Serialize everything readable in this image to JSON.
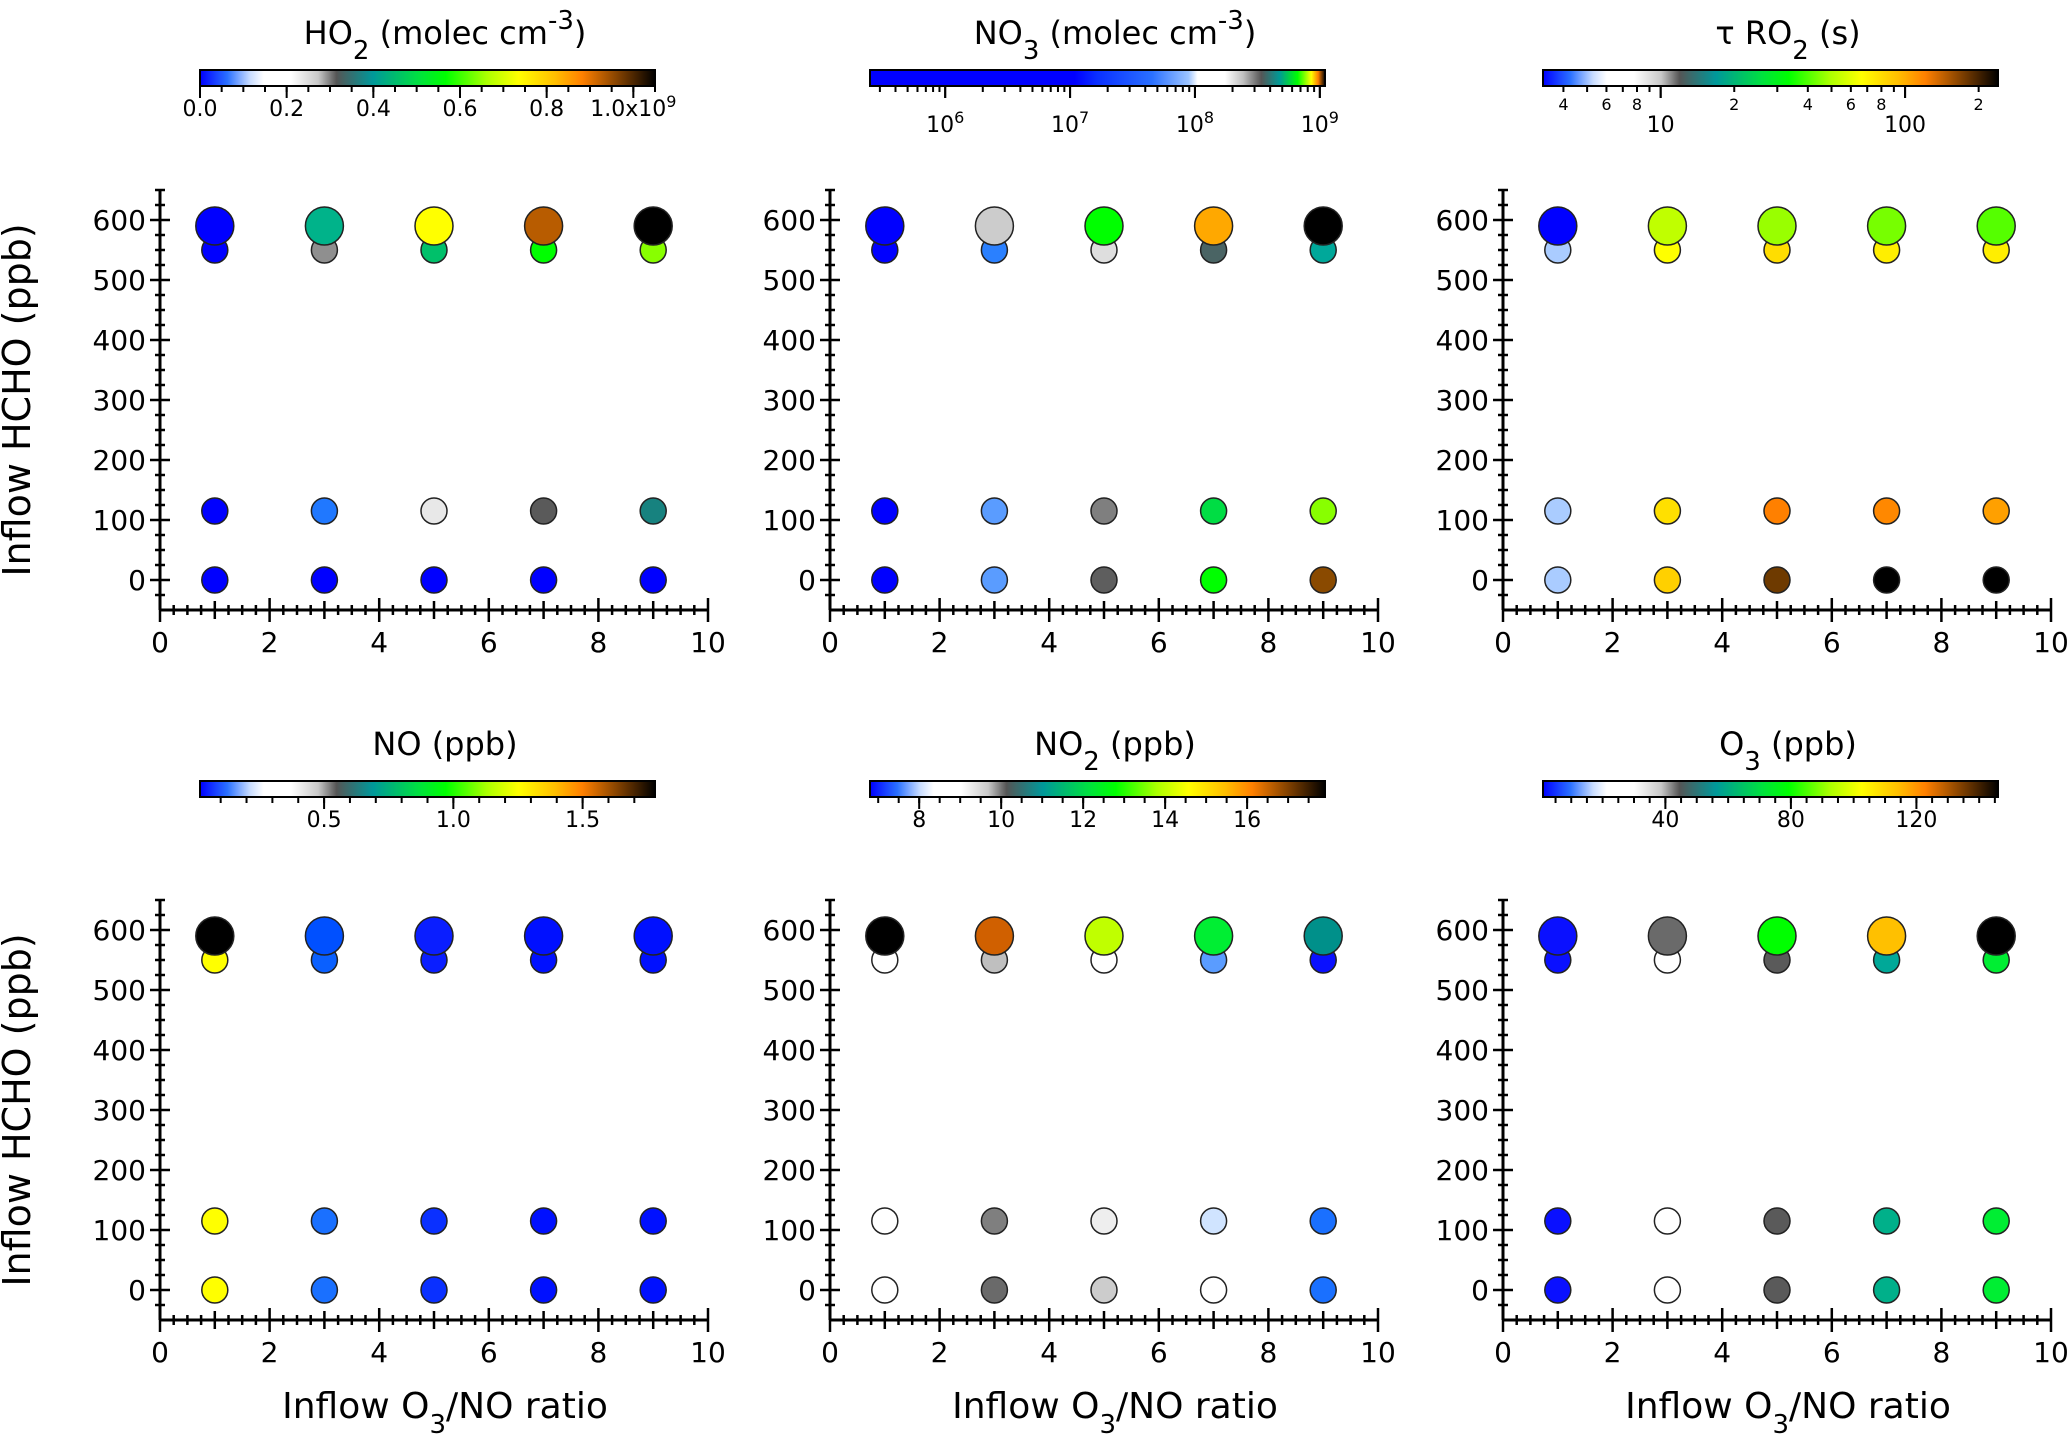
{
  "figure": {
    "shared_ylabel": "Inflow HCHO (ppb)",
    "shared_xlabel_parts": [
      "Inflow O",
      "3",
      "/NO ratio"
    ]
  },
  "chart_data": [
    {
      "id": "ho2",
      "type": "scatter",
      "title_parts": [
        {
          "t": "HO"
        },
        {
          "t": "2",
          "sub": true
        },
        {
          "t": "  (molec cm"
        },
        {
          "t": "-3",
          "sup": true
        },
        {
          "t": ")"
        }
      ],
      "xlabel": "Inflow O3/NO ratio",
      "ylabel": "Inflow HCHO (ppb)",
      "xlim": [
        0,
        10
      ],
      "ylim": [
        -50,
        650
      ],
      "xticks": [
        0,
        2,
        4,
        6,
        8,
        10
      ],
      "yticks": [
        0,
        100,
        200,
        300,
        400,
        500,
        600
      ],
      "x_values": [
        1,
        3,
        5,
        7,
        9
      ],
      "colorbar": {
        "scale": "linear",
        "range": [
          0,
          1050000000.0
        ],
        "tick_labels": [
          {
            "v": 0,
            "label": "0.0"
          },
          {
            "v": 200000000.0,
            "label": "0.2"
          },
          {
            "v": 400000000.0,
            "label": "0.4"
          },
          {
            "v": 600000000.0,
            "label": "0.6"
          },
          {
            "v": 800000000.0,
            "label": "0.8"
          },
          {
            "v": 1000000000.0,
            "label": "1.0x10",
            "sup": "9"
          }
        ],
        "minor_step": 50000000.0
      },
      "series": [
        {
          "y": 590,
          "size": "large",
          "colors": [
            "#0000ff",
            "#00b38a",
            "#ffff00",
            "#b85c00",
            "#000000"
          ]
        },
        {
          "y": 550,
          "size": "small",
          "colors": [
            "#0000ff",
            "#8f8f8f",
            "#00c06a",
            "#00ff00",
            "#88ff00"
          ]
        },
        {
          "y": 115,
          "size": "small",
          "colors": [
            "#0000ff",
            "#2078ff",
            "#e8e8e8",
            "#5a5a5a",
            "#17827f"
          ]
        },
        {
          "y": 0,
          "size": "small",
          "colors": [
            "#0000ff",
            "#0000ff",
            "#0000ff",
            "#0000ff",
            "#0000ff"
          ]
        }
      ]
    },
    {
      "id": "no3",
      "type": "scatter",
      "title_parts": [
        {
          "t": "NO"
        },
        {
          "t": "3",
          "sub": true
        },
        {
          "t": "  (molec cm"
        },
        {
          "t": "-3",
          "sup": true
        },
        {
          "t": ")"
        }
      ],
      "xlabel": "Inflow O3/NO ratio",
      "ylabel": "Inflow HCHO (ppb)",
      "xlim": [
        0,
        10
      ],
      "ylim": [
        -50,
        650
      ],
      "xticks": [
        0,
        2,
        4,
        6,
        8,
        10
      ],
      "yticks": [
        0,
        100,
        200,
        300,
        400,
        500,
        600
      ],
      "x_values": [
        1,
        3,
        5,
        7,
        9
      ],
      "colorbar": {
        "scale": "log",
        "range": [
          250000.0,
          1100000000.0
        ],
        "tick_labels": [
          {
            "v": 1000000.0,
            "label": "10",
            "sup": "6"
          },
          {
            "v": 10000000.0,
            "label": "10",
            "sup": "7"
          },
          {
            "v": 100000000.0,
            "label": "10",
            "sup": "8"
          },
          {
            "v": 1000000000.0,
            "label": "10",
            "sup": "9"
          }
        ],
        "lower_offset": true
      },
      "series": [
        {
          "y": 590,
          "size": "large",
          "colors": [
            "#0000ff",
            "#cccccc",
            "#00ff00",
            "#ffa800",
            "#000000"
          ]
        },
        {
          "y": 550,
          "size": "small",
          "colors": [
            "#0000ff",
            "#2a80ff",
            "#dedede",
            "#4a6464",
            "#00a89a"
          ]
        },
        {
          "y": 115,
          "size": "small",
          "colors": [
            "#0000ff",
            "#5a9cff",
            "#7f7f7f",
            "#00dd44",
            "#88ff00"
          ]
        },
        {
          "y": 0,
          "size": "small",
          "colors": [
            "#0000ff",
            "#5a9cff",
            "#5e5e5e",
            "#00ff00",
            "#8a4a00"
          ]
        }
      ]
    },
    {
      "id": "tau_ro2",
      "type": "scatter",
      "title_parts": [
        {
          "t": "τ RO"
        },
        {
          "t": "2",
          "sub": true
        },
        {
          "t": " (s)"
        }
      ],
      "xlabel": "Inflow O3/NO ratio",
      "ylabel": "Inflow HCHO (ppb)",
      "xlim": [
        0,
        10
      ],
      "ylim": [
        -50,
        650
      ],
      "xticks": [
        0,
        2,
        4,
        6,
        8,
        10
      ],
      "yticks": [
        0,
        100,
        200,
        300,
        400,
        500,
        600
      ],
      "x_values": [
        1,
        3,
        5,
        7,
        9
      ],
      "colorbar": {
        "scale": "log",
        "range": [
          3.3,
          240
        ],
        "minor_labels": [
          {
            "v": 4,
            "label": "4"
          },
          {
            "v": 6,
            "label": "6"
          },
          {
            "v": 8,
            "label": "8"
          },
          {
            "v": 20,
            "label": "2"
          },
          {
            "v": 40,
            "label": "4"
          },
          {
            "v": 60,
            "label": "6"
          },
          {
            "v": 80,
            "label": "8"
          },
          {
            "v": 200,
            "label": "2"
          }
        ],
        "tick_labels": [
          {
            "v": 10,
            "label": "10"
          },
          {
            "v": 100,
            "label": "100"
          }
        ],
        "lower_offset": true
      },
      "series": [
        {
          "y": 590,
          "size": "large",
          "colors": [
            "#0000ff",
            "#c0ff00",
            "#99ff00",
            "#77ff00",
            "#55ff00"
          ]
        },
        {
          "y": 550,
          "size": "small",
          "colors": [
            "#aaccff",
            "#ffff00",
            "#ffdd00",
            "#ffee00",
            "#ffee00"
          ]
        },
        {
          "y": 115,
          "size": "small",
          "colors": [
            "#aaccff",
            "#ffe000",
            "#ff8000",
            "#ff8800",
            "#ffa000"
          ]
        },
        {
          "y": 0,
          "size": "small",
          "colors": [
            "#aaccff",
            "#ffd000",
            "#6e3a00",
            "#000000",
            "#000000"
          ]
        }
      ]
    },
    {
      "id": "no",
      "type": "scatter",
      "title_parts": [
        {
          "t": "NO  (ppb)"
        }
      ],
      "xlabel": "Inflow O3/NO ratio",
      "ylabel": "Inflow HCHO (ppb)",
      "xlim": [
        0,
        10
      ],
      "ylim": [
        -50,
        650
      ],
      "xticks": [
        0,
        2,
        4,
        6,
        8,
        10
      ],
      "yticks": [
        0,
        100,
        200,
        300,
        400,
        500,
        600
      ],
      "x_values": [
        1,
        3,
        5,
        7,
        9
      ],
      "colorbar": {
        "scale": "linear",
        "range": [
          0.02,
          1.78
        ],
        "tick_labels": [
          {
            "v": 0.5,
            "label": "0.5"
          },
          {
            "v": 1.0,
            "label": "1.0"
          },
          {
            "v": 1.5,
            "label": "1.5"
          }
        ],
        "minor_step": 0.1
      },
      "series": [
        {
          "y": 590,
          "size": "large",
          "colors": [
            "#000000",
            "#0050ff",
            "#0a1eff",
            "#0010ff",
            "#0010ff"
          ]
        },
        {
          "y": 550,
          "size": "small",
          "colors": [
            "#ffff00",
            "#0a60ff",
            "#0a1eff",
            "#0010ff",
            "#0010ff"
          ]
        },
        {
          "y": 115,
          "size": "small",
          "colors": [
            "#ffff00",
            "#1a70ff",
            "#0a30ff",
            "#0010ff",
            "#0010ff"
          ]
        },
        {
          "y": 0,
          "size": "small",
          "colors": [
            "#ffff00",
            "#1a70ff",
            "#0a30ff",
            "#0010ff",
            "#0010ff"
          ]
        }
      ]
    },
    {
      "id": "no2",
      "type": "scatter",
      "title_parts": [
        {
          "t": "NO"
        },
        {
          "t": "2",
          "sub": true
        },
        {
          "t": "  (ppb)"
        }
      ],
      "xlabel": "Inflow O3/NO ratio",
      "ylabel": "Inflow HCHO (ppb)",
      "xlim": [
        0,
        10
      ],
      "ylim": [
        -50,
        650
      ],
      "xticks": [
        0,
        2,
        4,
        6,
        8,
        10
      ],
      "yticks": [
        0,
        100,
        200,
        300,
        400,
        500,
        600
      ],
      "x_values": [
        1,
        3,
        5,
        7,
        9
      ],
      "colorbar": {
        "scale": "linear",
        "range": [
          6.8,
          17.9
        ],
        "tick_labels": [
          {
            "v": 8,
            "label": "8"
          },
          {
            "v": 10,
            "label": "10"
          },
          {
            "v": 12,
            "label": "12"
          },
          {
            "v": 14,
            "label": "14"
          },
          {
            "v": 16,
            "label": "16"
          }
        ],
        "minor_step": 0.5
      },
      "series": [
        {
          "y": 590,
          "size": "large",
          "colors": [
            "#000000",
            "#d06000",
            "#c0ff00",
            "#00ee33",
            "#00908a"
          ]
        },
        {
          "y": 550,
          "size": "small",
          "colors": [
            "#ffffff",
            "#bfbfbf",
            "#ffffff",
            "#5a9cff",
            "#0a10ff"
          ]
        },
        {
          "y": 115,
          "size": "small",
          "colors": [
            "#ffffff",
            "#7f7f7f",
            "#eeeeee",
            "#d0e4ff",
            "#1a70ff"
          ]
        },
        {
          "y": 0,
          "size": "small",
          "colors": [
            "#ffffff",
            "#6a6a6a",
            "#cccccc",
            "#ffffff",
            "#1a70ff"
          ]
        }
      ]
    },
    {
      "id": "o3",
      "type": "scatter",
      "title_parts": [
        {
          "t": "O"
        },
        {
          "t": "3",
          "sub": true
        },
        {
          "t": "  (ppb)"
        }
      ],
      "xlabel": "Inflow O3/NO ratio",
      "ylabel": "Inflow HCHO (ppb)",
      "xlim": [
        0,
        10
      ],
      "ylim": [
        -50,
        650
      ],
      "xticks": [
        0,
        2,
        4,
        6,
        8,
        10
      ],
      "yticks": [
        0,
        100,
        200,
        300,
        400,
        500,
        600
      ],
      "x_values": [
        1,
        3,
        5,
        7,
        9
      ],
      "colorbar": {
        "scale": "linear",
        "range": [
          1,
          146
        ],
        "tick_labels": [
          {
            "v": 40,
            "label": "40"
          },
          {
            "v": 80,
            "label": "80"
          },
          {
            "v": 120,
            "label": "120"
          }
        ],
        "minor_step": 5
      },
      "series": [
        {
          "y": 590,
          "size": "large",
          "colors": [
            "#0a10ff",
            "#6a6a6a",
            "#00ff00",
            "#ffc000",
            "#000000"
          ]
        },
        {
          "y": 550,
          "size": "small",
          "colors": [
            "#0a10ff",
            "#ffffff",
            "#5a5a5a",
            "#00a898",
            "#00ee33"
          ]
        },
        {
          "y": 115,
          "size": "small",
          "colors": [
            "#0a10ff",
            "#ffffff",
            "#5a5a5a",
            "#00b08a",
            "#00ee33"
          ]
        },
        {
          "y": 0,
          "size": "small",
          "colors": [
            "#0a10ff",
            "#ffffff",
            "#5a5a5a",
            "#00b08a",
            "#00ee33"
          ]
        }
      ]
    }
  ]
}
